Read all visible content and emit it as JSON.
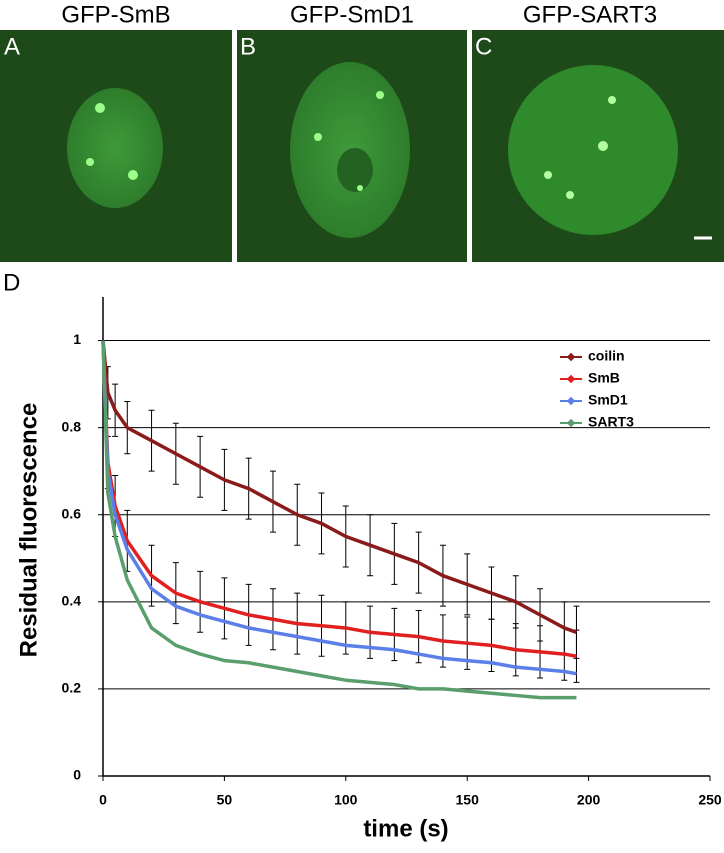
{
  "panels": [
    {
      "title": "GFP-SmB",
      "letter": "A"
    },
    {
      "title": "GFP-SmD1",
      "letter": "B"
    },
    {
      "title": "GFP-SART3",
      "letter": "C"
    }
  ],
  "chart_letter": "D",
  "chart_data": {
    "type": "line",
    "x_label": "time (s)",
    "y_label": "Residual fluorescence",
    "x": [
      0,
      2,
      5,
      10,
      20,
      30,
      40,
      50,
      60,
      70,
      80,
      90,
      100,
      110,
      120,
      130,
      140,
      150,
      160,
      170,
      180,
      190,
      195
    ],
    "series": [
      {
        "name": "coilin",
        "color": "#8b1a1a",
        "values": [
          1,
          0.88,
          0.84,
          0.8,
          0.77,
          0.74,
          0.71,
          0.68,
          0.66,
          0.63,
          0.6,
          0.58,
          0.55,
          0.53,
          0.51,
          0.49,
          0.46,
          0.44,
          0.42,
          0.4,
          0.37,
          0.34,
          0.33
        ],
        "errors": [
          0,
          0.06,
          0.06,
          0.06,
          0.07,
          0.07,
          0.07,
          0.07,
          0.07,
          0.07,
          0.07,
          0.07,
          0.07,
          0.07,
          0.07,
          0.07,
          0.07,
          0.07,
          0.06,
          0.06,
          0.06,
          0.06,
          0.06
        ]
      },
      {
        "name": "SmB",
        "color": "#e02020",
        "values": [
          1,
          0.72,
          0.62,
          0.54,
          0.46,
          0.42,
          0.4,
          0.385,
          0.37,
          0.36,
          0.35,
          0.345,
          0.34,
          0.33,
          0.325,
          0.32,
          0.31,
          0.305,
          0.3,
          0.29,
          0.285,
          0.28,
          0.275
        ],
        "errors": [
          0,
          0.06,
          0.07,
          0.07,
          0.07,
          0.07,
          0.07,
          0.07,
          0.07,
          0.07,
          0.07,
          0.07,
          0.06,
          0.06,
          0.06,
          0.06,
          0.06,
          0.06,
          0.06,
          0.06,
          0.06,
          0.06,
          0.06
        ]
      },
      {
        "name": "SmD1",
        "color": "#5b7fe8",
        "values": [
          1,
          0.7,
          0.6,
          0.52,
          0.43,
          0.39,
          0.37,
          0.355,
          0.34,
          0.33,
          0.32,
          0.31,
          0.3,
          0.295,
          0.29,
          0.28,
          0.27,
          0.265,
          0.26,
          0.25,
          0.245,
          0.24,
          0.235
        ]
      },
      {
        "name": "SART3",
        "color": "#5a9e6e",
        "values": [
          1,
          0.65,
          0.55,
          0.45,
          0.34,
          0.3,
          0.28,
          0.265,
          0.26,
          0.25,
          0.24,
          0.23,
          0.22,
          0.215,
          0.21,
          0.2,
          0.2,
          0.195,
          0.19,
          0.185,
          0.18,
          0.18,
          0.18
        ]
      }
    ],
    "xlim": [
      0,
      250
    ],
    "xticks": [
      0,
      50,
      100,
      150,
      200,
      250
    ],
    "ylim": [
      0,
      1.1
    ],
    "yticks": [
      0,
      0.2,
      0.4,
      0.6,
      0.8,
      1
    ],
    "grid": true,
    "legend": "upper right"
  }
}
